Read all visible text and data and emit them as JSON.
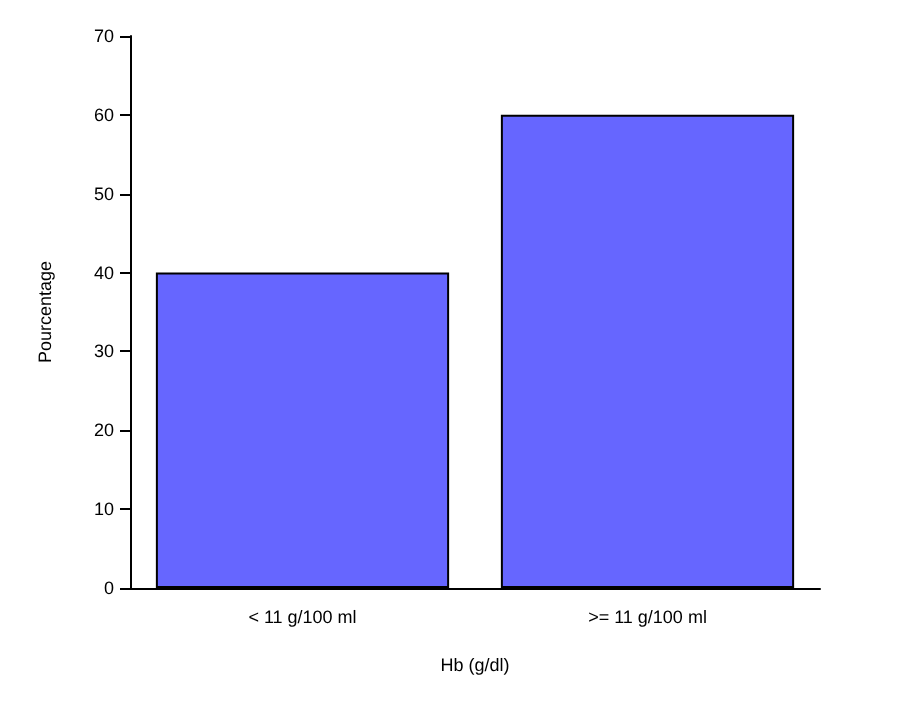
{
  "chart_data": {
    "type": "bar",
    "xlabel": "Hb (g/dl)",
    "ylabel": "Pourcentage",
    "categories": [
      "< 11 g/100 ml",
      ">= 11 g/100 ml"
    ],
    "values": [
      40,
      60
    ],
    "color": "#6666ff",
    "ylim": [
      0,
      70
    ],
    "yticks": [
      0,
      10,
      20,
      30,
      40,
      50,
      60,
      70
    ],
    "grid": false
  }
}
